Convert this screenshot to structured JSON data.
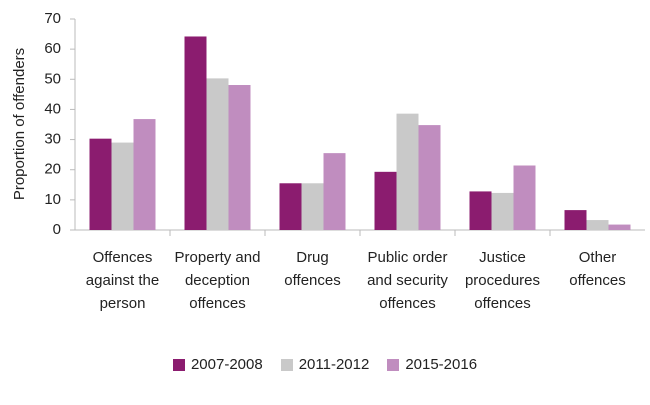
{
  "chart_data": {
    "type": "bar",
    "y_label": "Proportion of offenders",
    "categories": [
      "Offences against the person",
      "Property and deception offences",
      "Drug offences",
      "Public order and security offences",
      "Justice procedures offences",
      "Other offences"
    ],
    "series": [
      {
        "name": "2007-2008",
        "color": "#8b1c6f",
        "values": [
          30.3,
          64.2,
          15.5,
          19.3,
          12.8,
          6.6
        ]
      },
      {
        "name": "2011-2012",
        "color": "#c9c9c9",
        "values": [
          29.0,
          50.3,
          15.5,
          38.6,
          12.3,
          3.3
        ]
      },
      {
        "name": "2015-2016",
        "color": "#c08dbf",
        "values": [
          36.8,
          48.1,
          25.5,
          34.8,
          21.4,
          1.8
        ]
      }
    ],
    "ylim": [
      0,
      70
    ],
    "yticks": [
      0,
      10,
      20,
      30,
      40,
      50,
      60,
      70
    ],
    "grid": false,
    "legend": "bottom"
  }
}
